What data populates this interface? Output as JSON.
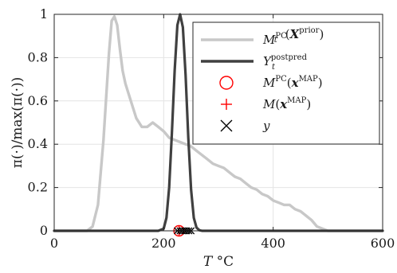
{
  "chart_data": {
    "type": "line",
    "title": "",
    "xlabel": "T °C",
    "ylabel": "π(·)/max(π(·))",
    "xlim": [
      0,
      600
    ],
    "ylim": [
      0,
      1
    ],
    "x_ticks": [
      0,
      200,
      400,
      600
    ],
    "y_ticks": [
      0,
      0.2,
      0.4,
      0.6,
      0.8,
      1
    ],
    "x_tick_labels": [
      "0",
      "200",
      "400",
      "600"
    ],
    "y_tick_labels": [
      "0",
      "0.2",
      "0.4",
      "0.6",
      "0.8",
      "1"
    ],
    "grid": true,
    "legend_position": "top-right",
    "series": [
      {
        "name": "M_t^PC(X^prior)",
        "color": "#c8c8c8",
        "style": "line",
        "x": [
          0,
          60,
          70,
          80,
          90,
          100,
          105,
          110,
          115,
          120,
          125,
          130,
          140,
          150,
          160,
          170,
          180,
          190,
          200,
          210,
          220,
          230,
          240,
          250,
          260,
          270,
          280,
          290,
          300,
          310,
          320,
          330,
          340,
          350,
          360,
          370,
          380,
          390,
          400,
          410,
          420,
          430,
          440,
          450,
          460,
          470,
          480,
          490,
          500,
          510,
          600
        ],
        "y": [
          0,
          0,
          0.02,
          0.12,
          0.42,
          0.82,
          0.97,
          0.99,
          0.95,
          0.84,
          0.74,
          0.68,
          0.6,
          0.52,
          0.48,
          0.48,
          0.5,
          0.48,
          0.46,
          0.43,
          0.42,
          0.41,
          0.4,
          0.39,
          0.37,
          0.35,
          0.33,
          0.31,
          0.3,
          0.29,
          0.27,
          0.25,
          0.24,
          0.22,
          0.2,
          0.19,
          0.17,
          0.16,
          0.14,
          0.13,
          0.12,
          0.12,
          0.1,
          0.09,
          0.07,
          0.05,
          0.02,
          0.01,
          0,
          0,
          0
        ]
      },
      {
        "name": "Y_t^postpred",
        "color": "#404040",
        "style": "line",
        "x": [
          0,
          190,
          200,
          205,
          210,
          215,
          220,
          225,
          230,
          235,
          240,
          245,
          250,
          255,
          260,
          265,
          270,
          280,
          600
        ],
        "y": [
          0,
          0,
          0.01,
          0.06,
          0.2,
          0.45,
          0.74,
          0.95,
          1,
          0.94,
          0.72,
          0.43,
          0.19,
          0.06,
          0.015,
          0.003,
          0,
          0,
          0
        ]
      }
    ],
    "points": [
      {
        "name": "M^PC(x^MAP)",
        "color": "#ff0000",
        "marker": "circle",
        "x": 228,
        "y": 0
      },
      {
        "name": "M(x^MAP)",
        "color": "#ff0000",
        "marker": "plus",
        "x": 228,
        "y": 0
      },
      {
        "name": "y",
        "color": "#000000",
        "marker": "x",
        "x": [
          225,
          230,
          234,
          238,
          242,
          246,
          250
        ],
        "y": [
          0,
          0,
          0,
          0,
          0,
          0,
          0
        ]
      }
    ]
  },
  "legend": [
    {
      "key": "prior",
      "sym": "line",
      "color": "#c8c8c8",
      "label": "M_t^PC(X^prior)"
    },
    {
      "key": "post",
      "sym": "line",
      "color": "#404040",
      "label": "Y_t^postpred"
    },
    {
      "key": "circ",
      "sym": "circle",
      "color": "#ff0000",
      "label": "M^PC(x^MAP)"
    },
    {
      "key": "plus",
      "sym": "plus",
      "color": "#ff0000",
      "label": "M(x^MAP)"
    },
    {
      "key": "ys",
      "sym": "x",
      "color": "#000000",
      "label": "y"
    }
  ]
}
